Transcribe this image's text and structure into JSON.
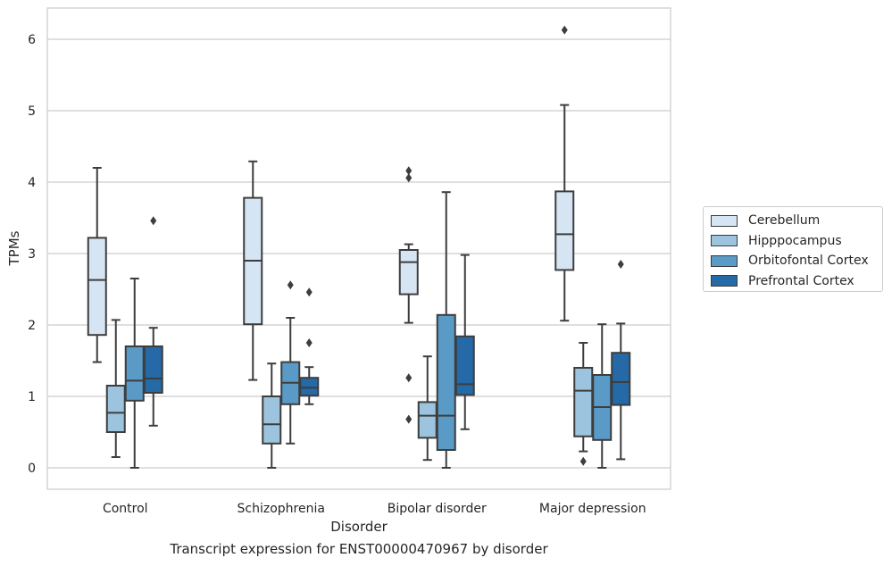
{
  "chart_data": {
    "type": "box",
    "caption": "Transcript expression for ENST00000470967 by disorder",
    "xlabel": "Disorder",
    "ylabel": "TPMs",
    "ylim": [
      -0.3,
      6.45
    ],
    "yticks": [
      0,
      1,
      2,
      3,
      4,
      5,
      6
    ],
    "grid": true,
    "legend_position": "right",
    "categories": [
      "Control",
      "Schizophrenia",
      "Bipolar disorder",
      "Major depression"
    ],
    "series": [
      {
        "name": "Cerebellum",
        "color": "#d6e5f3",
        "boxes": [
          {
            "whislo": 1.48,
            "q1": 1.86,
            "med": 2.63,
            "q3": 3.22,
            "whishi": 4.2,
            "fliers": []
          },
          {
            "whislo": 1.23,
            "q1": 2.01,
            "med": 2.9,
            "q3": 3.78,
            "whishi": 4.29,
            "fliers": []
          },
          {
            "whislo": 2.03,
            "q1": 2.43,
            "med": 2.88,
            "q3": 3.05,
            "whishi": 3.13,
            "fliers": [
              4.16,
              4.06,
              1.26,
              0.68
            ]
          },
          {
            "whislo": 2.06,
            "q1": 2.77,
            "med": 3.27,
            "q3": 3.87,
            "whishi": 5.08,
            "fliers": [
              6.13
            ]
          }
        ]
      },
      {
        "name": "Hipppocampus",
        "color": "#9cc4de",
        "boxes": [
          {
            "whislo": 0.15,
            "q1": 0.5,
            "med": 0.77,
            "q3": 1.15,
            "whishi": 2.07,
            "fliers": []
          },
          {
            "whislo": 0.0,
            "q1": 0.34,
            "med": 0.61,
            "q3": 1.0,
            "whishi": 1.46,
            "fliers": []
          },
          {
            "whislo": 0.11,
            "q1": 0.42,
            "med": 0.73,
            "q3": 0.92,
            "whishi": 1.56,
            "fliers": []
          },
          {
            "whislo": 0.23,
            "q1": 0.44,
            "med": 1.08,
            "q3": 1.4,
            "whishi": 1.75,
            "fliers": [
              0.09
            ]
          }
        ]
      },
      {
        "name": "Orbitofontal Cortex",
        "color": "#5a9ac7",
        "boxes": [
          {
            "whislo": 0.0,
            "q1": 0.94,
            "med": 1.22,
            "q3": 1.7,
            "whishi": 2.65,
            "fliers": []
          },
          {
            "whislo": 0.34,
            "q1": 0.89,
            "med": 1.19,
            "q3": 1.48,
            "whishi": 2.1,
            "fliers": [
              2.56
            ]
          },
          {
            "whislo": 0.0,
            "q1": 0.25,
            "med": 0.73,
            "q3": 2.14,
            "whishi": 3.86,
            "fliers": []
          },
          {
            "whislo": 0.0,
            "q1": 0.39,
            "med": 0.85,
            "q3": 1.3,
            "whishi": 2.01,
            "fliers": []
          }
        ]
      },
      {
        "name": "Prefrontal Cortex",
        "color": "#2569a7",
        "boxes": [
          {
            "whislo": 0.59,
            "q1": 1.05,
            "med": 1.25,
            "q3": 1.7,
            "whishi": 1.96,
            "fliers": [
              3.46
            ]
          },
          {
            "whislo": 0.89,
            "q1": 1.01,
            "med": 1.12,
            "q3": 1.26,
            "whishi": 1.41,
            "fliers": [
              2.46,
              1.75
            ]
          },
          {
            "whislo": 0.54,
            "q1": 1.02,
            "med": 1.17,
            "q3": 1.84,
            "whishi": 2.98,
            "fliers": []
          },
          {
            "whislo": 0.12,
            "q1": 0.88,
            "med": 1.2,
            "q3": 1.61,
            "whishi": 2.02,
            "fliers": [
              2.85
            ]
          }
        ]
      }
    ]
  }
}
